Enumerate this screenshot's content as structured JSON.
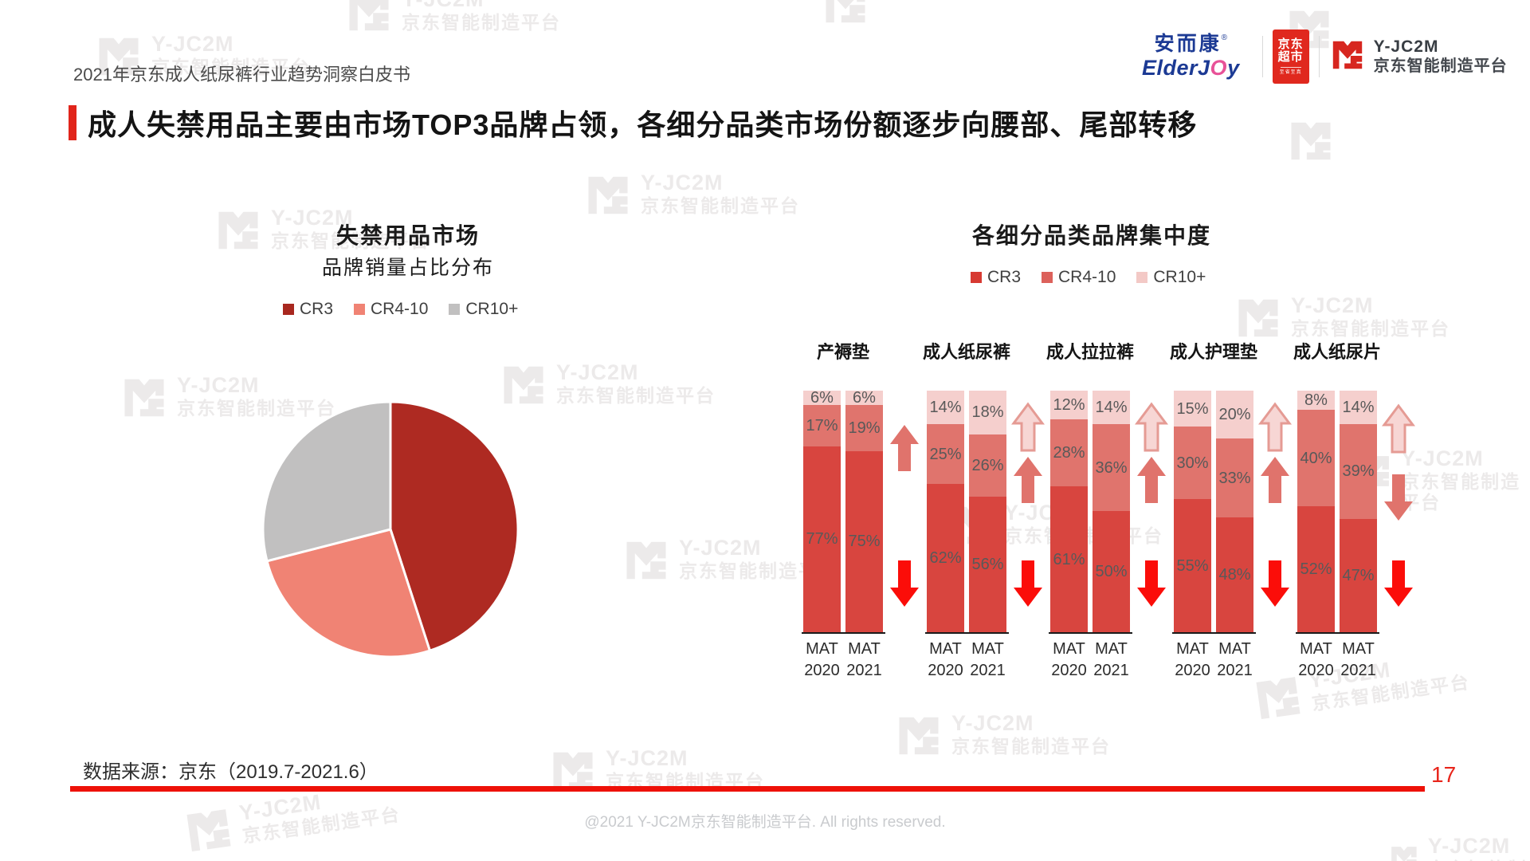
{
  "page": {
    "header_left": "2021年京东成人纸尿裤行业趋势洞察白皮书",
    "title": "成人失禁用品主要由市场TOP3品牌占领，各细分品类市场份额逐步向腰部、尾部转移",
    "source_note": "数据来源：京东（2019.7-2021.6）",
    "page_number": "17",
    "footer": "@2021 Y-JC2M京东智能制造平台. All rights reserved."
  },
  "logos": {
    "elderjoy_cn": "安而康",
    "elderjoy_reg": "®",
    "elderjoy_en_left": "ElderJ",
    "elderjoy_en_o": "O",
    "elderjoy_en_right": "y",
    "jd_market_line1": "京东",
    "jd_market_line2": "超市",
    "jd_market_tagline": "至省至真",
    "yjc2m_name": "Y-JC2M",
    "yjc2m_subtitle": "京东智能制造平台"
  },
  "watermark": {
    "line1": "Y-JC2M",
    "line2": "京东智能制造平台"
  },
  "colors": {
    "accent_red": "#e1251b",
    "bottom_line_red": "#ee1108",
    "logo_red": "#d7261f",
    "arrow_up_salmon": "#e0736c",
    "arrow_up_light_fill": "#f7d6d4",
    "arrow_up_light_stroke": "#e59b94",
    "arrow_down_red": "#fb0d09"
  },
  "chart_data": [
    {
      "type": "pie",
      "title": "失禁用品市场",
      "subtitle": "品牌销量占比分布",
      "data_labels": false,
      "start_angle_deg": 0,
      "direction": "clockwise",
      "legend": [
        {
          "label": "CR3",
          "color": "#a8281f"
        },
        {
          "label": "CR4-10",
          "color": "#f08374"
        },
        {
          "label": "CR10+",
          "color": "#c1c0c0"
        }
      ],
      "slices": [
        {
          "label": "CR3",
          "value_pct_estimated": 45,
          "color": "#ae2a22"
        },
        {
          "label": "CR4-10",
          "value_pct_estimated": 26,
          "color": "#f08374"
        },
        {
          "label": "CR10+",
          "value_pct_estimated": 29,
          "color": "#c1c0c0"
        }
      ]
    },
    {
      "type": "bar",
      "stacked": true,
      "unit": "%",
      "title": "各细分品类品牌集中度",
      "ylim": [
        0,
        100
      ],
      "grid": false,
      "legend": [
        {
          "label": "CR3",
          "color": "#d73a32"
        },
        {
          "label": "CR4-10",
          "color": "#dc615b"
        },
        {
          "label": "CR10+",
          "color": "#f3c9c6"
        }
      ],
      "segment_colors": {
        "CR3": "#d8453f",
        "CR4-10": "#e0746d",
        "CR10+": "#f5cfcd"
      },
      "stack_order_bottom_to_top": [
        "CR3",
        "CR4-10",
        "CR10+"
      ],
      "groups": [
        {
          "category": "产褥垫",
          "bars": [
            {
              "label": "MAT 2020",
              "CR3": 77,
              "CR4-10": 17,
              "CR10+": 6
            },
            {
              "label": "MAT 2021",
              "CR3": 75,
              "CR4-10": 19,
              "CR10+": 6
            }
          ],
          "arrows": [
            {
              "dir": "up",
              "tone": "salmon"
            },
            {
              "dir": "down",
              "tone": "red"
            }
          ]
        },
        {
          "category": "成人纸尿裤",
          "bars": [
            {
              "label": "MAT 2020",
              "CR3": 62,
              "CR4-10": 25,
              "CR10+": 14
            },
            {
              "label": "MAT 2021",
              "CR3": 56,
              "CR4-10": 26,
              "CR10+": 18
            }
          ],
          "arrows": [
            {
              "dir": "up",
              "tone": "light"
            },
            {
              "dir": "up",
              "tone": "salmon"
            },
            {
              "dir": "down",
              "tone": "red"
            }
          ]
        },
        {
          "category": "成人拉拉裤",
          "bars": [
            {
              "label": "MAT 2020",
              "CR3": 61,
              "CR4-10": 28,
              "CR10+": 12
            },
            {
              "label": "MAT 2021",
              "CR3": 50,
              "CR4-10": 36,
              "CR10+": 14
            }
          ],
          "arrows": [
            {
              "dir": "up",
              "tone": "light"
            },
            {
              "dir": "up",
              "tone": "salmon"
            },
            {
              "dir": "down",
              "tone": "red"
            }
          ]
        },
        {
          "category": "成人护理垫",
          "bars": [
            {
              "label": "MAT 2020",
              "CR3": 55,
              "CR4-10": 30,
              "CR10+": 15
            },
            {
              "label": "MAT 2021",
              "CR3": 48,
              "CR4-10": 33,
              "CR10+": 20
            }
          ],
          "arrows": [
            {
              "dir": "up",
              "tone": "light"
            },
            {
              "dir": "up",
              "tone": "salmon"
            },
            {
              "dir": "down",
              "tone": "red"
            }
          ]
        },
        {
          "category": "成人纸尿片",
          "bars": [
            {
              "label": "MAT 2020",
              "CR3": 52,
              "CR4-10": 40,
              "CR10+": 8
            },
            {
              "label": "MAT 2021",
              "CR3": 47,
              "CR4-10": 39,
              "CR10+": 14
            }
          ],
          "arrows": [
            {
              "dir": "up",
              "tone": "light"
            },
            {
              "dir": "down",
              "tone": "salmon"
            },
            {
              "dir": "down",
              "tone": "red"
            }
          ]
        }
      ]
    }
  ]
}
